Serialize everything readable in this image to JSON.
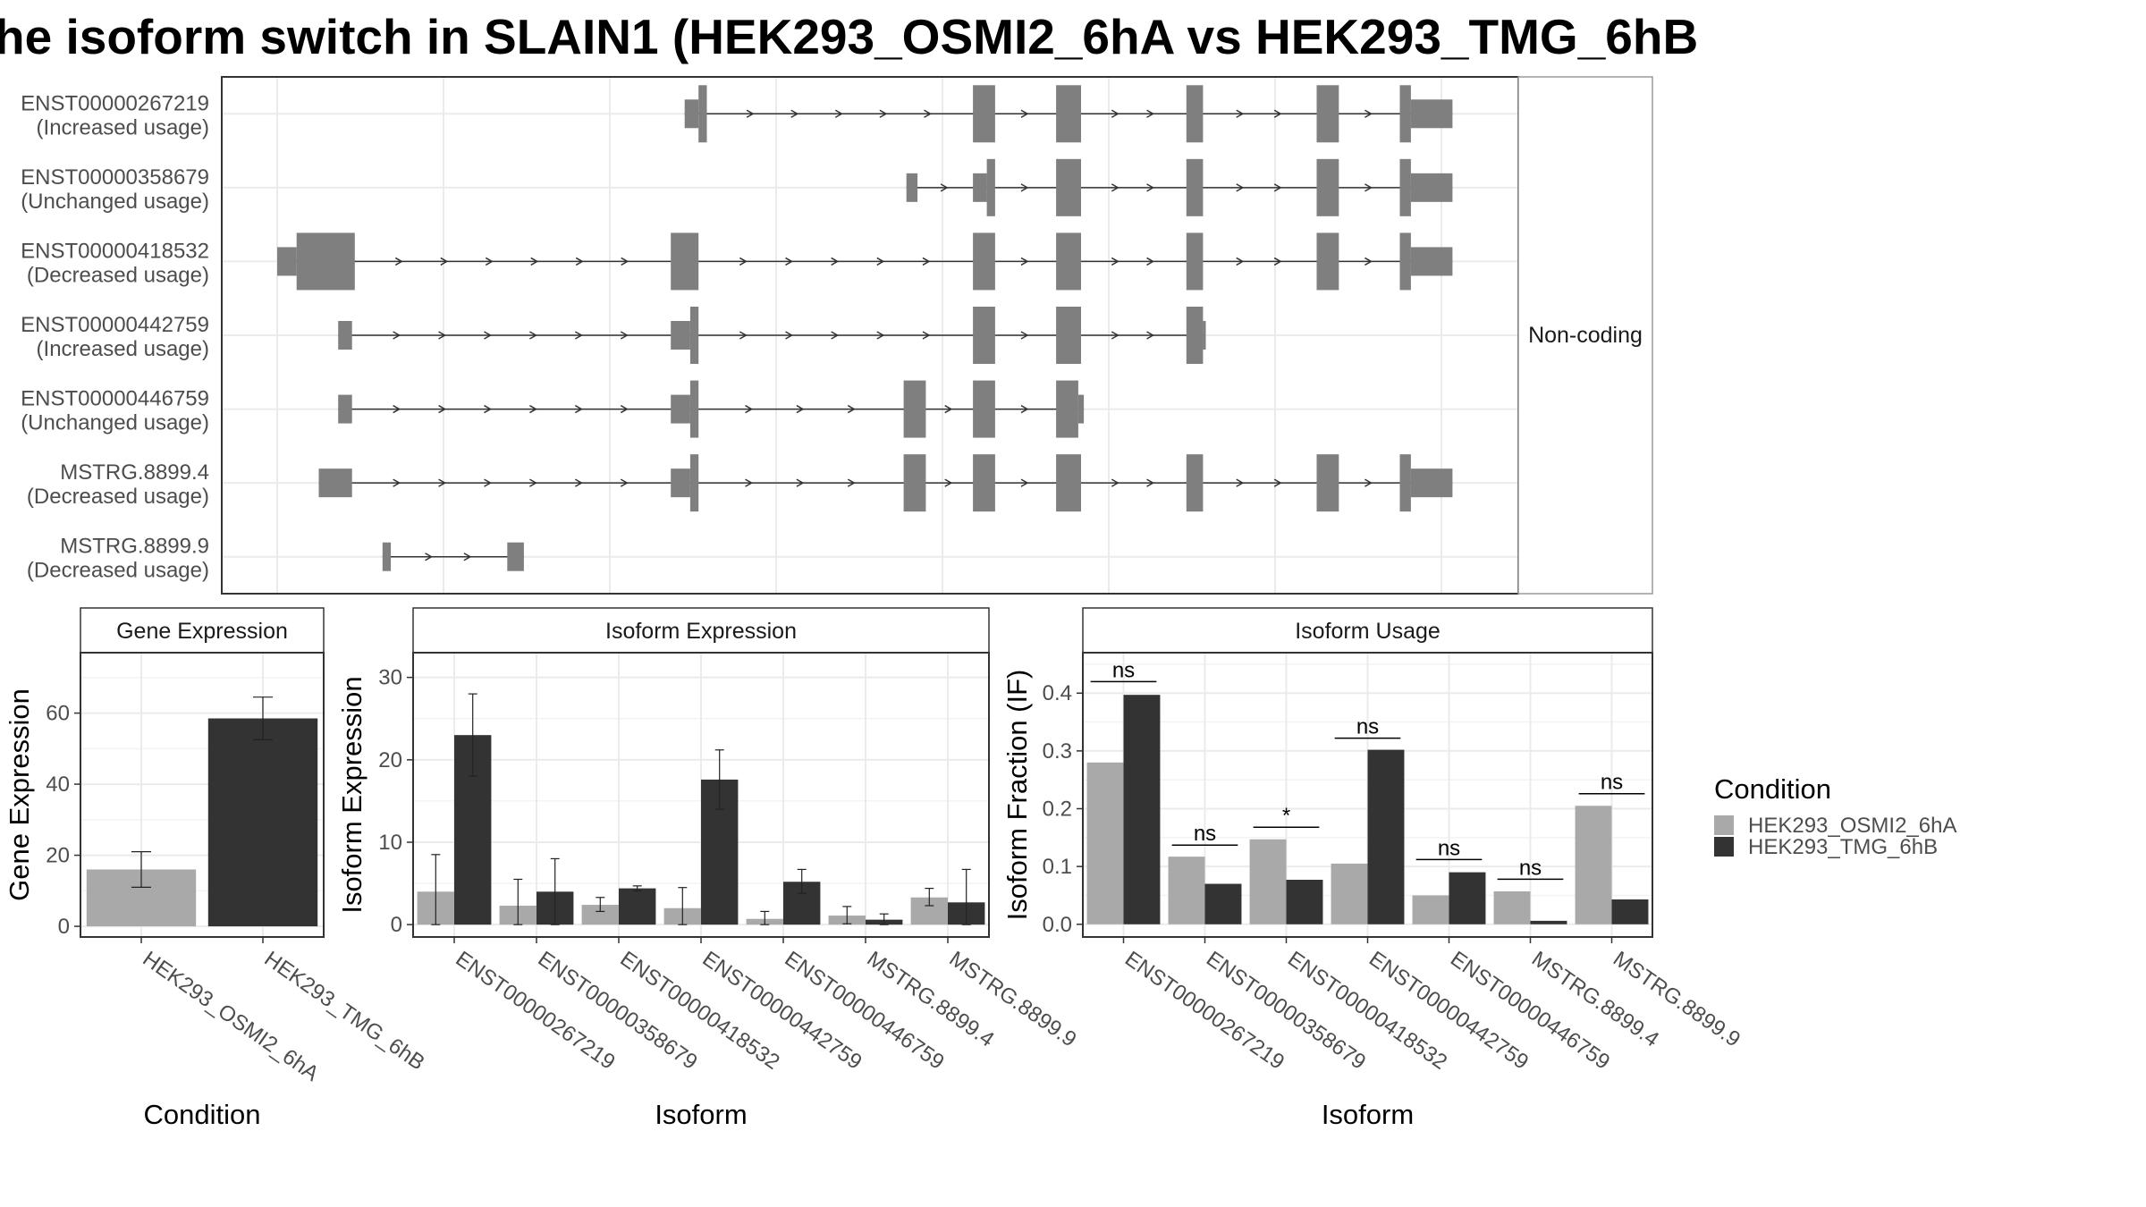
{
  "title": "he isoform switch in SLAIN1 (HEK293_OSMI2_6hA vs HEK293_TMG_6hB",
  "colors": {
    "cond_a": "#a9a9a9",
    "cond_b": "#333333",
    "exon": "#7f7f7f",
    "grid": "#ebebeb"
  },
  "chart_data": [
    {
      "type": "diagram",
      "name": "transcript-structure",
      "facet_label": "Non-coding",
      "x_range": [
        0,
        22
      ],
      "x_gridlines": [
        1,
        4,
        7,
        10,
        13,
        16,
        19,
        22
      ],
      "transcripts": [
        {
          "id": "ENST00000267219",
          "usage": "(Increased usage)",
          "exons": [
            [
              8.35,
              8.6,
              "thin"
            ],
            [
              8.6,
              8.75,
              "thick"
            ],
            [
              13.55,
              13.95,
              "thick"
            ],
            [
              15.05,
              15.5,
              "thick"
            ],
            [
              17.4,
              17.7,
              "thick"
            ],
            [
              19.75,
              20.15,
              "thick"
            ],
            [
              21.25,
              21.45,
              "thick"
            ],
            [
              21.45,
              22.2,
              "thin"
            ]
          ]
        },
        {
          "id": "ENST00000358679",
          "usage": "(Unchanged usage)",
          "exons": [
            [
              12.35,
              12.55,
              "thin"
            ],
            [
              13.55,
              13.8,
              "thin"
            ],
            [
              13.8,
              13.95,
              "thick"
            ],
            [
              15.05,
              15.5,
              "thick"
            ],
            [
              17.4,
              17.7,
              "thick"
            ],
            [
              19.75,
              20.15,
              "thick"
            ],
            [
              21.25,
              21.45,
              "thick"
            ],
            [
              21.45,
              22.2,
              "thin"
            ]
          ]
        },
        {
          "id": "ENST00000418532",
          "usage": "(Decreased usage)",
          "exons": [
            [
              1.0,
              1.35,
              "thin"
            ],
            [
              1.35,
              2.4,
              "thick"
            ],
            [
              8.1,
              8.6,
              "thick"
            ],
            [
              13.55,
              13.95,
              "thick"
            ],
            [
              15.05,
              15.5,
              "thick"
            ],
            [
              17.4,
              17.7,
              "thick"
            ],
            [
              19.75,
              20.15,
              "thick"
            ],
            [
              21.25,
              21.45,
              "thick"
            ],
            [
              21.45,
              22.2,
              "thin"
            ]
          ]
        },
        {
          "id": "ENST00000442759",
          "usage": "(Increased usage)",
          "exons": [
            [
              2.1,
              2.35,
              "thin"
            ],
            [
              8.1,
              8.45,
              "thin"
            ],
            [
              8.45,
              8.6,
              "thick"
            ],
            [
              13.55,
              13.95,
              "thick"
            ],
            [
              15.05,
              15.5,
              "thick"
            ],
            [
              17.4,
              17.7,
              "thick"
            ],
            [
              17.7,
              17.75,
              "thin"
            ]
          ]
        },
        {
          "id": "ENST00000446759",
          "usage": "(Unchanged usage)",
          "exons": [
            [
              2.1,
              2.35,
              "thin"
            ],
            [
              8.1,
              8.45,
              "thin"
            ],
            [
              8.45,
              8.6,
              "thick"
            ],
            [
              12.3,
              12.7,
              "thick"
            ],
            [
              13.55,
              13.95,
              "thick"
            ],
            [
              15.05,
              15.45,
              "thick"
            ],
            [
              15.45,
              15.55,
              "thin"
            ]
          ]
        },
        {
          "id": "MSTRG.8899.4",
          "usage": "(Decreased usage)",
          "exons": [
            [
              1.75,
              2.35,
              "thin"
            ],
            [
              8.1,
              8.45,
              "thin"
            ],
            [
              8.45,
              8.6,
              "thick"
            ],
            [
              12.3,
              12.7,
              "thick"
            ],
            [
              13.55,
              13.95,
              "thick"
            ],
            [
              15.05,
              15.5,
              "thick"
            ],
            [
              17.4,
              17.7,
              "thick"
            ],
            [
              19.75,
              20.15,
              "thick"
            ],
            [
              21.25,
              21.45,
              "thick"
            ],
            [
              21.45,
              22.2,
              "thin"
            ]
          ]
        },
        {
          "id": "MSTRG.8899.9",
          "usage": "(Decreased usage)",
          "exons": [
            [
              2.9,
              3.05,
              "thin"
            ],
            [
              5.15,
              5.45,
              "thin"
            ]
          ]
        }
      ]
    },
    {
      "type": "bar",
      "name": "gene-expression",
      "title": "Gene Expression",
      "xlabel": "Condition",
      "ylabel": "Gene Expression",
      "ylim": [
        -3,
        77
      ],
      "yticks": [
        0,
        20,
        40,
        60
      ],
      "categories": [
        "HEK293_OSMI2_6hA",
        "HEK293_TMG_6hB"
      ],
      "values": [
        16,
        58.5
      ],
      "err_low": [
        11,
        52.5
      ],
      "err_high": [
        21,
        64.5
      ]
    },
    {
      "type": "bar",
      "name": "isoform-expression",
      "title": "Isoform Expression",
      "xlabel": "Isoform",
      "ylabel": "Isoform Expression",
      "ylim": [
        -1.5,
        33
      ],
      "yticks": [
        0,
        10,
        20,
        30
      ],
      "categories": [
        "ENST00000267219",
        "ENST00000358679",
        "ENST00000418532",
        "ENST00000442759",
        "ENST00000446759",
        "MSTRG.8899.4",
        "MSTRG.8899.9"
      ],
      "series": [
        {
          "name": "HEK293_OSMI2_6hA",
          "values": [
            4.0,
            2.3,
            2.4,
            2.0,
            0.7,
            1.1,
            3.3
          ],
          "err_low": [
            0.0,
            0.0,
            1.6,
            0.0,
            0.0,
            0.1,
            2.3
          ],
          "err_high": [
            8.5,
            5.5,
            3.3,
            4.5,
            1.6,
            2.2,
            4.4
          ]
        },
        {
          "name": "HEK293_TMG_6hB",
          "values": [
            23.0,
            4.0,
            4.4,
            17.6,
            5.2,
            0.6,
            2.7
          ],
          "err_low": [
            18.0,
            0.0,
            4.1,
            14.0,
            3.8,
            0.0,
            0.0
          ],
          "err_high": [
            28.0,
            8.0,
            4.7,
            21.2,
            6.7,
            1.3,
            6.7
          ]
        }
      ]
    },
    {
      "type": "bar",
      "name": "isoform-usage",
      "title": "Isoform Usage",
      "xlabel": "Isoform",
      "ylabel": "Isoform Fraction (IF)",
      "ylim": [
        -0.022,
        0.47
      ],
      "yticks": [
        0.0,
        0.1,
        0.2,
        0.3,
        0.4
      ],
      "ytick_labels": [
        "0.0",
        "0.1",
        "0.2",
        "0.3",
        "0.4"
      ],
      "categories": [
        "ENST00000267219",
        "ENST00000358679",
        "ENST00000418532",
        "ENST00000442759",
        "ENST00000446759",
        "MSTRG.8899.4",
        "MSTRG.8899.9"
      ],
      "series": [
        {
          "name": "HEK293_OSMI2_6hA",
          "values": [
            0.28,
            0.117,
            0.147,
            0.105,
            0.05,
            0.057,
            0.205
          ]
        },
        {
          "name": "HEK293_TMG_6hB",
          "values": [
            0.397,
            0.07,
            0.077,
            0.302,
            0.09,
            0.006,
            0.043
          ]
        }
      ],
      "significance": [
        "ns",
        "ns",
        "*",
        "ns",
        "ns",
        "ns",
        "ns"
      ],
      "sig_line_y": [
        0.42,
        0.137,
        0.168,
        0.322,
        0.112,
        0.078,
        0.226
      ]
    }
  ],
  "legend": {
    "title": "Condition",
    "items": [
      "HEK293_OSMI2_6hA",
      "HEK293_TMG_6hB"
    ]
  }
}
